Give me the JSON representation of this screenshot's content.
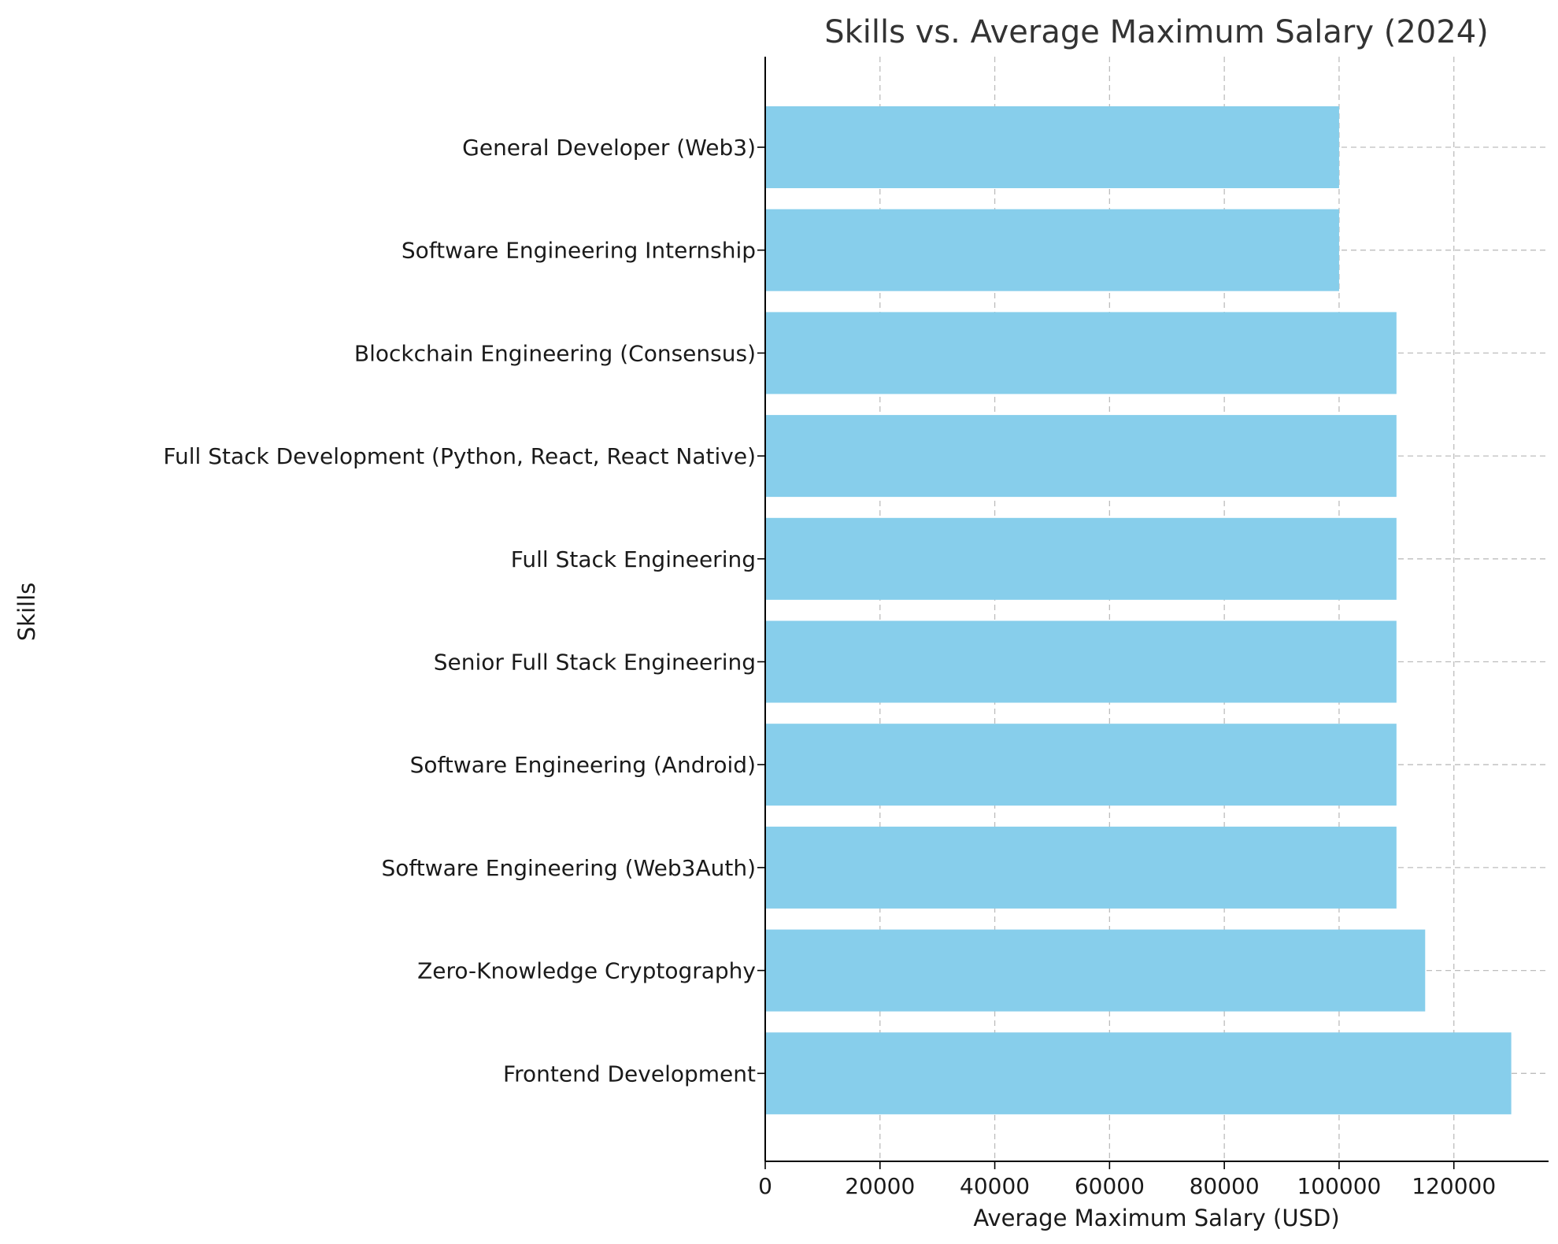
{
  "chart_data": {
    "type": "bar",
    "orientation": "horizontal",
    "title": "Skills vs. Average Maximum Salary (2024)",
    "xlabel": "Average Maximum Salary (USD)",
    "ylabel": "Skills",
    "categories": [
      "General Developer (Web3)",
      "Software Engineering Internship",
      "Blockchain Engineering (Consensus)",
      "Full Stack Development (Python, React, React Native)",
      "Full Stack Engineering",
      "Senior Full Stack Engineering",
      "Software Engineering (Android)",
      "Software Engineering (Web3Auth)",
      "Zero-Knowledge Cryptography",
      "Frontend Development"
    ],
    "values": [
      100000,
      100000,
      110000,
      110000,
      110000,
      110000,
      110000,
      110000,
      115000,
      130000
    ],
    "xlim": [
      0,
      136500
    ],
    "xticks": [
      0,
      20000,
      40000,
      60000,
      80000,
      100000,
      120000
    ],
    "bar_color": "#87CEEB",
    "grid": true
  }
}
